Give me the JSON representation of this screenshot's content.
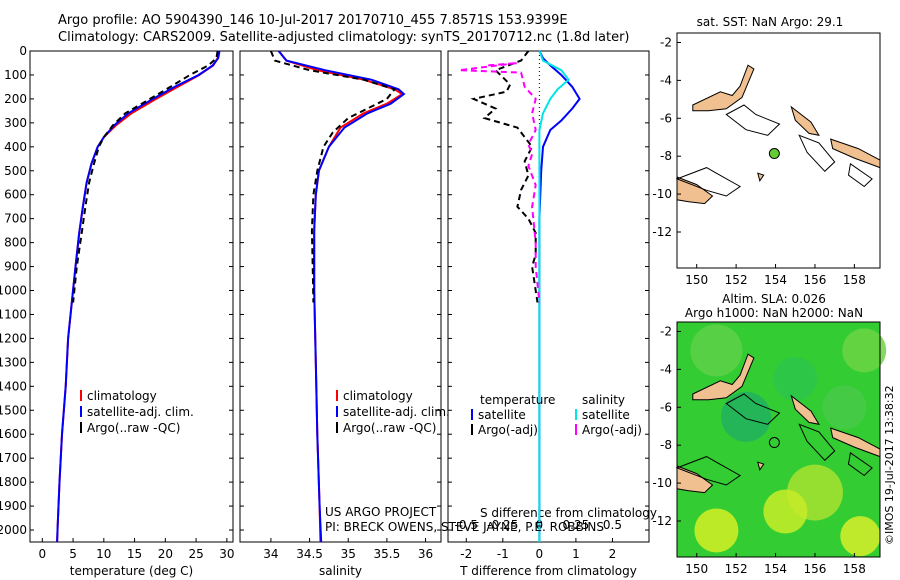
{
  "header": {
    "line1": "Argo profile: AO 5904390_146 10-Jul-2017 20170710_455 7.8571S 153.9399E",
    "line2": "Climatology: CARS2009. Satellite-adjusted climatology: synTS_20170712.nc (1.8d later)"
  },
  "stamp": "©IMOS 19-Jul-2017 13:38:32",
  "map_titles": {
    "top": "sat. SST: NaN Argo: 29.1",
    "bottom_line1": "Altim. SLA: 0.026",
    "bottom_line2": "Argo h1000: NaN h2000: NaN"
  },
  "project_text": {
    "line1": "US ARGO PROJECT",
    "line2": "PI: BRECK OWENS, STEVE JAYNE, P.E. ROBBINS"
  },
  "colors": {
    "climatology": "#ff0000",
    "satellite": "#0000ff",
    "argo": "#000000",
    "salinity_satellite": "#00e5e5",
    "salinity_argo": "#ff00ff",
    "land": "#f0c090"
  },
  "chart_data": [
    {
      "type": "line",
      "xlabel": "temperature (deg C)",
      "xlim": [
        -2,
        31
      ],
      "xticks": [
        0,
        5,
        10,
        15,
        20,
        25,
        30
      ],
      "ylim": [
        0,
        2050
      ],
      "yticks": [
        0,
        100,
        200,
        300,
        400,
        500,
        600,
        700,
        800,
        900,
        1000,
        1100,
        1200,
        1300,
        1400,
        1500,
        1600,
        1700,
        1800,
        1900,
        2000
      ],
      "legend": [
        "climatology",
        "satellite-adj. clim.",
        "Argo(..raw -QC)"
      ],
      "series": [
        {
          "name": "climatology",
          "color": "#ff0000",
          "dash": "none",
          "points": [
            [
              28.7,
              0
            ],
            [
              28.5,
              30
            ],
            [
              27.8,
              60
            ],
            [
              25.5,
              100
            ],
            [
              22,
              150
            ],
            [
              18.5,
              200
            ],
            [
              14.5,
              260
            ],
            [
              12,
              310
            ],
            [
              10,
              360
            ],
            [
              9,
              400
            ],
            [
              8,
              470
            ],
            [
              7.2,
              550
            ],
            [
              6.6,
              650
            ],
            [
              6,
              760
            ],
            [
              5.4,
              900
            ],
            [
              4.8,
              1050
            ],
            [
              4.2,
              1200
            ],
            [
              3.8,
              1400
            ],
            [
              3.2,
              1600
            ],
            [
              2.8,
              1800
            ],
            [
              2.5,
              1980
            ],
            [
              2.4,
              2050
            ]
          ]
        },
        {
          "name": "satellite-adj. clim.",
          "color": "#0000ff",
          "dash": "none",
          "points": [
            [
              28.8,
              0
            ],
            [
              28.6,
              30
            ],
            [
              27.7,
              60
            ],
            [
              25.4,
              100
            ],
            [
              21.5,
              150
            ],
            [
              18,
              200
            ],
            [
              14,
              260
            ],
            [
              11.7,
              310
            ],
            [
              10,
              360
            ],
            [
              9,
              400
            ],
            [
              8,
              470
            ],
            [
              7.2,
              550
            ],
            [
              6.6,
              650
            ],
            [
              6,
              760
            ],
            [
              5.4,
              900
            ],
            [
              4.8,
              1050
            ],
            [
              4.2,
              1200
            ],
            [
              3.8,
              1400
            ],
            [
              3.2,
              1600
            ],
            [
              2.8,
              1800
            ],
            [
              2.5,
              1980
            ],
            [
              2.4,
              2050
            ]
          ]
        },
        {
          "name": "Argo(..raw -QC)",
          "color": "#000000",
          "dash": "6,4",
          "points": [
            [
              28.5,
              0
            ],
            [
              28.3,
              30
            ],
            [
              27,
              60
            ],
            [
              24,
              100
            ],
            [
              20.8,
              150
            ],
            [
              17.5,
              200
            ],
            [
              13.5,
              260
            ],
            [
              11.5,
              310
            ],
            [
              10,
              360
            ],
            [
              9.2,
              400
            ],
            [
              8.4,
              470
            ],
            [
              7.6,
              550
            ],
            [
              7,
              650
            ],
            [
              6.4,
              760
            ],
            [
              5.6,
              900
            ],
            [
              5,
              1050
            ]
          ]
        }
      ]
    },
    {
      "type": "line",
      "xlabel": "salinity",
      "xlim": [
        33.6,
        36.2
      ],
      "xticks": [
        34,
        34.5,
        35,
        35.5,
        36
      ],
      "ylim": [
        0,
        2050
      ],
      "legend": [
        "climatology",
        "satellite-adj. clim.",
        "Argo(..raw -QC)"
      ],
      "series": [
        {
          "name": "climatology",
          "color": "#ff0000",
          "dash": "none",
          "points": [
            [
              34.1,
              0
            ],
            [
              34.2,
              40
            ],
            [
              34.6,
              80
            ],
            [
              35.2,
              120
            ],
            [
              35.6,
              160
            ],
            [
              35.7,
              180
            ],
            [
              35.5,
              220
            ],
            [
              35.2,
              260
            ],
            [
              34.9,
              320
            ],
            [
              34.75,
              400
            ],
            [
              34.62,
              500
            ],
            [
              34.58,
              600
            ],
            [
              34.56,
              750
            ],
            [
              34.56,
              1000
            ],
            [
              34.58,
              1300
            ],
            [
              34.6,
              1600
            ],
            [
              34.63,
              1900
            ],
            [
              34.64,
              2050
            ]
          ]
        },
        {
          "name": "satellite-adj. clim.",
          "color": "#0000ff",
          "dash": "none",
          "points": [
            [
              34.1,
              0
            ],
            [
              34.2,
              40
            ],
            [
              34.7,
              80
            ],
            [
              35.3,
              120
            ],
            [
              35.65,
              160
            ],
            [
              35.72,
              180
            ],
            [
              35.55,
              220
            ],
            [
              35.25,
              260
            ],
            [
              34.95,
              320
            ],
            [
              34.75,
              400
            ],
            [
              34.62,
              500
            ],
            [
              34.58,
              600
            ],
            [
              34.56,
              750
            ],
            [
              34.56,
              1000
            ],
            [
              34.58,
              1300
            ],
            [
              34.6,
              1600
            ],
            [
              34.63,
              1900
            ],
            [
              34.65,
              2050
            ]
          ]
        },
        {
          "name": "Argo(..raw -QC)",
          "color": "#000000",
          "dash": "6,4",
          "points": [
            [
              34.0,
              0
            ],
            [
              34.05,
              40
            ],
            [
              34.5,
              80
            ],
            [
              35.2,
              120
            ],
            [
              35.6,
              160
            ],
            [
              35.5,
              200
            ],
            [
              35.25,
              240
            ],
            [
              35.0,
              280
            ],
            [
              34.8,
              340
            ],
            [
              34.68,
              400
            ],
            [
              34.6,
              500
            ],
            [
              34.55,
              600
            ],
            [
              34.53,
              750
            ],
            [
              34.54,
              900
            ],
            [
              34.55,
              1050
            ]
          ]
        }
      ]
    },
    {
      "type": "line",
      "xlabel": "T difference from climatology",
      "toplabel": "S difference from climatology",
      "xlim": [
        -2.5,
        3
      ],
      "xticks": [
        -2,
        -1,
        0,
        1,
        2
      ],
      "topticklabels": [
        "-0.5",
        "-0.25",
        "0",
        "0.25",
        "0.5"
      ],
      "topticks_T": [
        -2,
        -1,
        0,
        1,
        2
      ],
      "legend_temperature": [
        "temperature",
        "satellite",
        "Argo(-adj)"
      ],
      "legend_salinity": [
        "salinity",
        "satellite",
        "Argo(-adj)"
      ],
      "series": [
        {
          "name": "temperature satellite",
          "color": "#0000ff",
          "dash": "none",
          "points": [
            [
              0,
              0
            ],
            [
              0.1,
              30
            ],
            [
              0.3,
              60
            ],
            [
              0.6,
              100
            ],
            [
              0.9,
              150
            ],
            [
              1.1,
              200
            ],
            [
              0.9,
              240
            ],
            [
              0.6,
              290
            ],
            [
              0.3,
              330
            ],
            [
              0.1,
              400
            ],
            [
              0.05,
              500
            ],
            [
              0,
              700
            ],
            [
              0,
              1000
            ],
            [
              0,
              1500
            ],
            [
              0,
              2050
            ]
          ]
        },
        {
          "name": "temperature Argo(-adj)",
          "color": "#000000",
          "dash": "6,4",
          "points": [
            [
              -0.3,
              0
            ],
            [
              -0.5,
              40
            ],
            [
              -1.2,
              80
            ],
            [
              -1.0,
              110
            ],
            [
              -0.8,
              140
            ],
            [
              -0.9,
              170
            ],
            [
              -1.8,
              200
            ],
            [
              -1.2,
              240
            ],
            [
              -1.5,
              280
            ],
            [
              -0.6,
              320
            ],
            [
              -0.4,
              360
            ],
            [
              -0.2,
              400
            ],
            [
              -0.4,
              460
            ],
            [
              -0.3,
              520
            ],
            [
              -0.5,
              580
            ],
            [
              -0.6,
              650
            ],
            [
              -0.3,
              700
            ],
            [
              -0.1,
              760
            ],
            [
              -0.1,
              850
            ],
            [
              -0.2,
              900
            ],
            [
              -0.1,
              1000
            ],
            [
              -0.05,
              1050
            ]
          ]
        },
        {
          "name": "salinity satellite",
          "color": "#00e5e5",
          "dash": "none",
          "points": [
            [
              0,
              0
            ],
            [
              0.1,
              40
            ],
            [
              0.6,
              80
            ],
            [
              0.8,
              120
            ],
            [
              0.5,
              160
            ],
            [
              0.3,
              200
            ],
            [
              0.1,
              260
            ],
            [
              0,
              330
            ],
            [
              0,
              500
            ],
            [
              0,
              1000
            ],
            [
              0,
              1500
            ],
            [
              0,
              2050
            ]
          ]
        },
        {
          "name": "salinity Argo(-adj)",
          "color": "#ff00ff",
          "dash": "6,4",
          "points": [
            [
              -1.4,
              60
            ],
            [
              -0.6,
              50
            ],
            [
              -2.2,
              80
            ],
            [
              -0.5,
              90
            ],
            [
              -0.4,
              150
            ],
            [
              -0.1,
              200
            ],
            [
              -0.2,
              260
            ],
            [
              -0.1,
              330
            ],
            [
              -0.3,
              390
            ],
            [
              -0.2,
              430
            ],
            [
              -0.3,
              480
            ],
            [
              -0.1,
              560
            ],
            [
              -0.2,
              650
            ],
            [
              -0.1,
              800
            ],
            [
              -0.1,
              900
            ],
            [
              0,
              1050
            ]
          ]
        }
      ]
    },
    {
      "type": "scatter",
      "title": "sat. SST: NaN Argo: 29.1",
      "xlim": [
        149,
        159.3
      ],
      "ylim": [
        -13.9,
        -1.5
      ],
      "xticks": [
        150,
        152,
        154,
        156,
        158
      ],
      "yticks": [
        -2,
        -4,
        -6,
        -8,
        -10,
        -12
      ],
      "points": [
        {
          "x": 153.94,
          "y": -7.86,
          "color": "#66cc33"
        }
      ]
    },
    {
      "type": "heatmap",
      "title": "Altim. SLA: 0.026",
      "subtitle": "Argo h1000: NaN h2000: NaN",
      "xlim": [
        149,
        159.3
      ],
      "ylim": [
        -13.9,
        -1.5
      ],
      "xticks": [
        150,
        152,
        154,
        156,
        158
      ],
      "yticks": [
        -2,
        -4,
        -6,
        -8,
        -10,
        -12
      ],
      "points": [
        {
          "x": 153.94,
          "y": -7.86
        }
      ]
    }
  ]
}
